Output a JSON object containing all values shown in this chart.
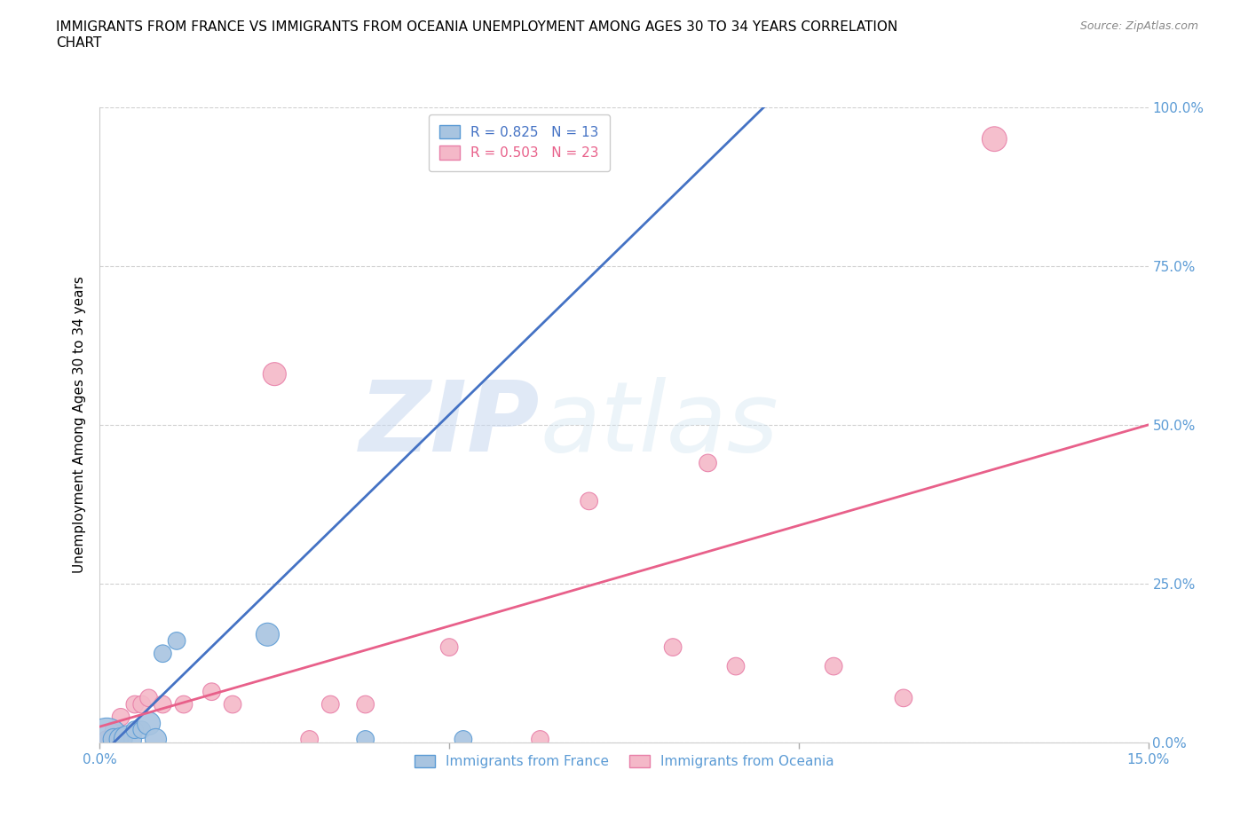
{
  "title": "IMMIGRANTS FROM FRANCE VS IMMIGRANTS FROM OCEANIA UNEMPLOYMENT AMONG AGES 30 TO 34 YEARS CORRELATION\nCHART",
  "source": "Source: ZipAtlas.com",
  "ylabel": "Unemployment Among Ages 30 to 34 years",
  "xlim": [
    0,
    0.15
  ],
  "ylim": [
    0,
    1.0
  ],
  "yticks": [
    0.0,
    0.25,
    0.5,
    0.75,
    1.0
  ],
  "yticklabels": [
    "0.0%",
    "25.0%",
    "50.0%",
    "75.0%",
    "100.0%"
  ],
  "ytick_color": "#5b9bd5",
  "xtick_color": "#5b9bd5",
  "france_color": "#a8c4e0",
  "france_edge_color": "#5b9bd5",
  "oceania_color": "#f4b8c8",
  "oceania_edge_color": "#e87fa8",
  "france_line_color": "#4472c4",
  "oceania_line_color": "#e8608a",
  "legend_france_R": "0.825",
  "legend_france_N": "13",
  "legend_oceania_R": "0.503",
  "legend_oceania_N": "23",
  "watermark_zip": "ZIP",
  "watermark_atlas": "atlas",
  "france_line_x0": 0.002,
  "france_line_y0": 0.0,
  "france_line_x1": 0.095,
  "france_line_y1": 1.0,
  "oceania_line_x0": 0.0,
  "oceania_line_y0": 0.025,
  "oceania_line_x1": 0.15,
  "oceania_line_y1": 0.5,
  "france_points": [
    [
      0.001,
      0.005
    ],
    [
      0.002,
      0.005
    ],
    [
      0.003,
      0.005
    ],
    [
      0.004,
      0.005
    ],
    [
      0.005,
      0.02
    ],
    [
      0.006,
      0.02
    ],
    [
      0.007,
      0.03
    ],
    [
      0.008,
      0.005
    ],
    [
      0.009,
      0.14
    ],
    [
      0.011,
      0.16
    ],
    [
      0.024,
      0.17
    ],
    [
      0.038,
      0.005
    ],
    [
      0.052,
      0.005
    ]
  ],
  "france_sizes": [
    1200,
    300,
    350,
    500,
    200,
    200,
    350,
    300,
    200,
    200,
    350,
    200,
    200
  ],
  "oceania_points": [
    [
      0.001,
      0.005
    ],
    [
      0.002,
      0.02
    ],
    [
      0.003,
      0.04
    ],
    [
      0.005,
      0.06
    ],
    [
      0.006,
      0.06
    ],
    [
      0.007,
      0.07
    ],
    [
      0.009,
      0.06
    ],
    [
      0.012,
      0.06
    ],
    [
      0.016,
      0.08
    ],
    [
      0.019,
      0.06
    ],
    [
      0.025,
      0.58
    ],
    [
      0.03,
      0.005
    ],
    [
      0.033,
      0.06
    ],
    [
      0.038,
      0.06
    ],
    [
      0.05,
      0.15
    ],
    [
      0.063,
      0.005
    ],
    [
      0.07,
      0.38
    ],
    [
      0.082,
      0.15
    ],
    [
      0.087,
      0.44
    ],
    [
      0.091,
      0.12
    ],
    [
      0.105,
      0.12
    ],
    [
      0.115,
      0.07
    ],
    [
      0.128,
      0.95
    ]
  ],
  "oceania_sizes": [
    200,
    200,
    200,
    200,
    200,
    200,
    200,
    200,
    200,
    200,
    350,
    200,
    200,
    200,
    200,
    200,
    200,
    200,
    200,
    200,
    200,
    200,
    400
  ]
}
